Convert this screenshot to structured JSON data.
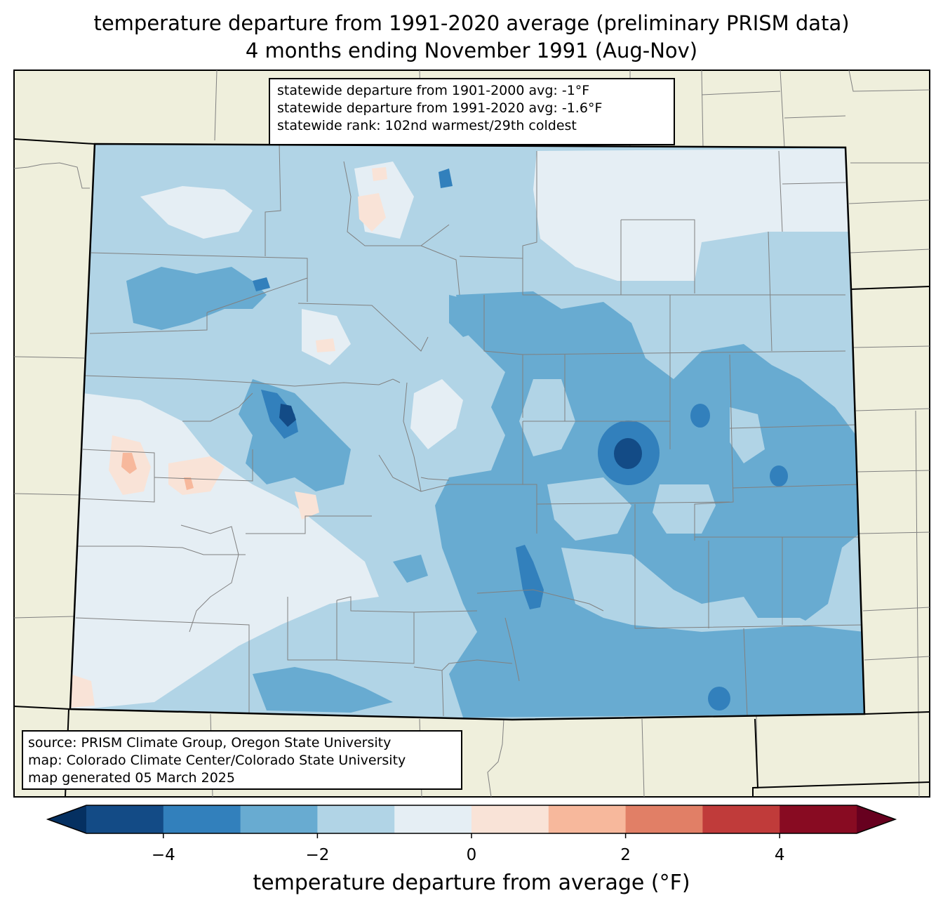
{
  "title_line1": "temperature departure from 1991-2020 average (preliminary PRISM data)",
  "title_line2": "4 months ending November 1991 (Aug-Nov)",
  "stats": [
    "statewide departure from 1901-2000 avg: -1°F",
    "statewide departure from 1991-2020 avg: -1.6°F",
    "statewide rank: 102nd warmest/29th coldest"
  ],
  "source": [
    "source: PRISM Climate Group, Oregon State University",
    "map: Colorado Climate Center/Colorado State University",
    "map generated 05 March 2025"
  ],
  "colorbar": {
    "label": "temperature departure from average (°F)",
    "min": -5,
    "max": 5,
    "step": 1,
    "ticks": [
      {
        "value": -4,
        "label": "−4"
      },
      {
        "value": -2,
        "label": "−2"
      },
      {
        "value": 0,
        "label": "0"
      },
      {
        "value": 2,
        "label": "2"
      },
      {
        "value": 4,
        "label": "4"
      }
    ],
    "colors": [
      "#134b86",
      "#3280bc",
      "#68abd1",
      "#b1d4e6",
      "#e5eef4",
      "#f9e3d7",
      "#f7b89c",
      "#e17f66",
      "#c03b3a",
      "#880b22"
    ],
    "extend_low_color": "#053061",
    "extend_high_color": "#67001f"
  },
  "map_colors": {
    "land": "#efefdc",
    "background_state": "#b1d4e6"
  }
}
